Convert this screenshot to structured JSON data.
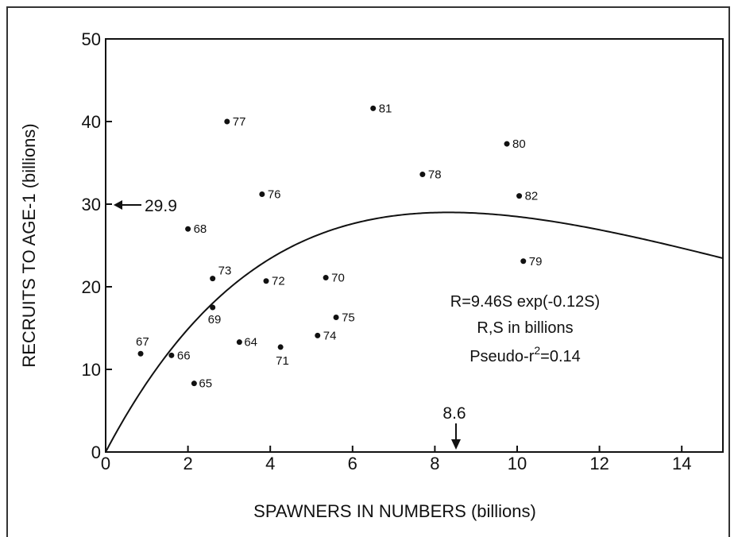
{
  "chart_data": {
    "type": "scatter",
    "xlabel": "SPAWNERS IN NUMBERS (billions)",
    "ylabel": "RECRUITS TO AGE-1 (billions)",
    "xlim": [
      0,
      15
    ],
    "ylim": [
      0,
      50
    ],
    "x_ticks": [
      "0",
      "2",
      "4",
      "6",
      "8",
      "10",
      "12",
      "14"
    ],
    "y_ticks": [
      "0",
      "10",
      "20",
      "30",
      "40",
      "50"
    ],
    "grid": false,
    "points": [
      {
        "label": "64",
        "x": 3.25,
        "y": 13.3
      },
      {
        "label": "65",
        "x": 2.15,
        "y": 8.3
      },
      {
        "label": "66",
        "x": 1.6,
        "y": 11.7
      },
      {
        "label": "67",
        "x": 0.85,
        "y": 11.9
      },
      {
        "label": "68",
        "x": 2.0,
        "y": 27.0
      },
      {
        "label": "69",
        "x": 2.6,
        "y": 17.5
      },
      {
        "label": "70",
        "x": 5.35,
        "y": 21.1
      },
      {
        "label": "71",
        "x": 4.25,
        "y": 12.7
      },
      {
        "label": "72",
        "x": 3.9,
        "y": 20.7
      },
      {
        "label": "73",
        "x": 2.6,
        "y": 21.0
      },
      {
        "label": "74",
        "x": 5.15,
        "y": 14.1
      },
      {
        "label": "75",
        "x": 5.6,
        "y": 16.3
      },
      {
        "label": "76",
        "x": 3.8,
        "y": 31.2
      },
      {
        "label": "77",
        "x": 2.95,
        "y": 40.0
      },
      {
        "label": "78",
        "x": 7.7,
        "y": 33.6
      },
      {
        "label": "79",
        "x": 10.15,
        "y": 23.1
      },
      {
        "label": "80",
        "x": 9.75,
        "y": 37.3
      },
      {
        "label": "81",
        "x": 6.5,
        "y": 41.6
      },
      {
        "label": "82",
        "x": 10.05,
        "y": 31.0
      }
    ],
    "curve": {
      "a": 9.46,
      "b": 0.12
    },
    "annotations": {
      "max_recruits": "29.9",
      "optimal_spawners": "8.6",
      "equation": "R=9.46S exp(-0.12S)",
      "units": "R,S in billions",
      "pseudo_r_prefix": "Pseudo-r",
      "pseudo_r_sup": "2",
      "pseudo_r_suffix": "=0.14"
    }
  }
}
